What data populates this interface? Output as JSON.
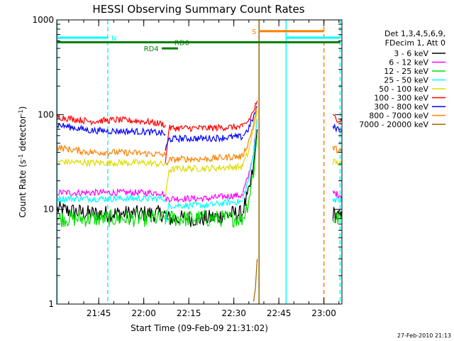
{
  "chart_data": {
    "type": "line",
    "title": "HESSI Observing Summary Count Rates",
    "xlabel": "Start Time (09-Feb-09 21:31:02)",
    "ylabel": "Count Rate (s⁻¹ detector⁻¹)",
    "ylabel_main": "Count Rate (s",
    "ylabel_sup1": "-1",
    "ylabel_mid": " detector",
    "ylabel_sup2": "-1",
    "ylabel_end": ")",
    "y_scale": "log",
    "ylim": [
      1,
      1000
    ],
    "xlim": [
      21.517,
      23.1
    ],
    "x_unit": "hours (UT)",
    "x_ticks": [
      {
        "value": 21.75,
        "label": "21:45"
      },
      {
        "value": 22.0,
        "label": "22:00"
      },
      {
        "value": 22.25,
        "label": "22:15"
      },
      {
        "value": 22.5,
        "label": "22:30"
      },
      {
        "value": 22.75,
        "label": "22:45"
      },
      {
        "value": 23.0,
        "label": "23:00"
      }
    ],
    "y_ticks": [
      {
        "value": 1,
        "label": "1"
      },
      {
        "value": 10,
        "label": "10"
      },
      {
        "value": 100,
        "label": "100"
      },
      {
        "value": 1000,
        "label": "1000"
      }
    ],
    "grid": false,
    "legend_position": "right",
    "legend_header": [
      "Det 1,3,4,5,6,9,",
      "FDecim 1, Att 0"
    ],
    "timestamp": "27-Feb-2010 21:13",
    "data_gap": [
      22.63,
      23.05
    ],
    "series": [
      {
        "name": "3 - 6 keV",
        "color": "#000000",
        "segments": [
          {
            "x": [
              21.52,
              21.7,
              21.85,
              22.0,
              22.1,
              22.12
            ],
            "y": [
              10,
              9,
              9,
              9,
              9,
              9
            ]
          },
          {
            "x": [
              22.12,
              22.2,
              22.35,
              22.5,
              22.55
            ],
            "y": [
              8,
              8,
              8,
              9,
              9
            ]
          },
          {
            "x": [
              22.55,
              22.58,
              22.61,
              22.63
            ],
            "y": [
              10,
              14,
              28,
              70
            ]
          },
          {
            "x": [
              23.05,
              23.1
            ],
            "y": [
              9,
              8
            ]
          }
        ]
      },
      {
        "name": "6 - 12 keV",
        "color": "#ff00ff",
        "segments": [
          {
            "x": [
              21.52,
              21.7,
              21.85,
              22.0,
              22.1,
              22.12
            ],
            "y": [
              15,
              15,
              15,
              15,
              15,
              14
            ]
          },
          {
            "x": [
              22.12,
              22.2,
              22.35,
              22.5,
              22.55
            ],
            "y": [
              13,
              13,
              13,
              14,
              14
            ]
          },
          {
            "x": [
              22.55,
              22.58,
              22.61,
              22.63
            ],
            "y": [
              15,
              22,
              40,
              90
            ]
          },
          {
            "x": [
              23.05,
              23.1
            ],
            "y": [
              15,
              14
            ]
          }
        ]
      },
      {
        "name": "12 - 25 keV",
        "color": "#00dd00",
        "segments": [
          {
            "x": [
              21.52,
              21.7,
              21.85,
              22.0,
              22.1,
              22.12
            ],
            "y": [
              8,
              8,
              8,
              8,
              8,
              8
            ]
          },
          {
            "x": [
              22.12,
              22.2,
              22.35,
              22.5,
              22.55
            ],
            "y": [
              8,
              8,
              8,
              8,
              8
            ]
          },
          {
            "x": [
              22.55,
              22.58,
              22.61,
              22.63
            ],
            "y": [
              8,
              12,
              25,
              60
            ]
          },
          {
            "x": [
              23.05,
              23.1
            ],
            "y": [
              8,
              8
            ]
          }
        ]
      },
      {
        "name": "25 - 50 keV",
        "color": "#00ffff",
        "segments": [
          {
            "x": [
              21.52,
              21.7,
              21.85,
              22.0,
              22.1,
              22.12
            ],
            "y": [
              13,
              13,
              13,
              13,
              13,
              13
            ]
          },
          {
            "x": [
              22.12,
              22.14,
              22.2,
              22.35,
              22.5,
              22.55
            ],
            "y": [
              7,
              11,
              11,
              11,
              12,
              12
            ]
          },
          {
            "x": [
              22.55,
              22.58,
              22.61,
              22.63
            ],
            "y": [
              13,
              20,
              40,
              90
            ]
          },
          {
            "x": [
              23.05,
              23.1
            ],
            "y": [
              13,
              12
            ]
          }
        ]
      },
      {
        "name": "50 - 100 keV",
        "color": "#dddd00",
        "segments": [
          {
            "x": [
              21.52,
              21.7,
              21.85,
              22.0,
              22.1,
              22.12
            ],
            "y": [
              32,
              31,
              31,
              31,
              30,
              30
            ]
          },
          {
            "x": [
              22.12,
              22.14,
              22.2,
              22.35,
              22.5,
              22.55
            ],
            "y": [
              13,
              26,
              27,
              27,
              28,
              28
            ]
          },
          {
            "x": [
              22.55,
              22.58,
              22.61,
              22.63
            ],
            "y": [
              30,
              40,
              70,
              110
            ]
          },
          {
            "x": [
              23.05,
              23.1
            ],
            "y": [
              32,
              30
            ]
          }
        ]
      },
      {
        "name": "100 - 300 keV",
        "color": "#ff0000",
        "segments": [
          {
            "x": [
              21.52,
              21.7,
              21.85,
              22.0,
              22.1,
              22.12
            ],
            "y": [
              95,
              85,
              88,
              85,
              80,
              78
            ]
          },
          {
            "x": [
              22.12,
              22.14,
              22.2,
              22.35,
              22.5,
              22.55
            ],
            "y": [
              30,
              72,
              72,
              72,
              74,
              74
            ]
          },
          {
            "x": [
              22.55,
              22.58,
              22.61,
              22.63
            ],
            "y": [
              76,
              85,
              110,
              140
            ]
          },
          {
            "x": [
              23.05,
              23.1
            ],
            "y": [
              95,
              85
            ]
          }
        ]
      },
      {
        "name": "300 - 800 keV",
        "color": "#0000ff",
        "segments": [
          {
            "x": [
              21.52,
              21.7,
              21.85,
              22.0,
              22.1,
              22.12
            ],
            "y": [
              78,
              68,
              67,
              66,
              64,
              62
            ]
          },
          {
            "x": [
              22.12,
              22.14,
              22.2,
              22.35,
              22.5,
              22.55
            ],
            "y": [
              42,
              55,
              56,
              56,
              58,
              58
            ]
          },
          {
            "x": [
              22.55,
              22.58,
              22.61,
              22.63
            ],
            "y": [
              60,
              70,
              95,
              120
            ]
          },
          {
            "x": [
              23.05,
              23.1
            ],
            "y": [
              75,
              68
            ]
          }
        ]
      },
      {
        "name": "800 - 7000 keV",
        "color": "#ff8000",
        "segments": [
          {
            "x": [
              21.52,
              21.7,
              21.85,
              22.0,
              22.1,
              22.12
            ],
            "y": [
              45,
              40,
              40,
              39,
              38,
              37
            ]
          },
          {
            "x": [
              22.12,
              22.14,
              22.2,
              22.35,
              22.5,
              22.55
            ],
            "y": [
              30,
              33,
              34,
              34,
              36,
              36
            ]
          },
          {
            "x": [
              22.55,
              22.58,
              22.61,
              22.63
            ],
            "y": [
              38,
              50,
              80,
              120
            ]
          },
          {
            "x": [
              23.05,
              23.1
            ],
            "y": [
              45,
              40
            ]
          }
        ]
      },
      {
        "name": "7000 - 20000 keV",
        "color": "#996600",
        "segments": [
          {
            "x": [
              22.61,
              22.62,
              22.63
            ],
            "y": [
              1,
              1.5,
              3
            ]
          }
        ]
      }
    ],
    "vlines": [
      {
        "x": 21.52,
        "color": "#00ffff",
        "style": "solid"
      },
      {
        "x": 21.8,
        "color": "#00ffff",
        "style": "dashed"
      },
      {
        "x": 22.64,
        "color": "#996600",
        "style": "solid"
      },
      {
        "x": 22.79,
        "color": "#00ffff",
        "style": "solid"
      },
      {
        "x": 23.0,
        "color": "#ff8000",
        "style": "dashed"
      },
      {
        "x": 23.09,
        "color": "#00ffff",
        "style": "dashed"
      }
    ],
    "bars": [
      {
        "label": "N",
        "x0": 21.52,
        "x1": 21.8,
        "y": 650,
        "color": "#00ffff",
        "label_x": 21.82,
        "thickness": 3
      },
      {
        "label": "",
        "x0": 22.79,
        "x1": 23.09,
        "y": 650,
        "color": "#00ffff",
        "thickness": 3
      },
      {
        "label": "RD0",
        "x0": 21.52,
        "x1": 23.09,
        "y": 580,
        "color": "#008000",
        "label_x": 22.17,
        "thickness": 3
      },
      {
        "label": "RD4",
        "x0": 22.1,
        "x1": 22.19,
        "y": 500,
        "color": "#008000",
        "label_x": 22.0,
        "thickness": 3
      },
      {
        "label": "S",
        "x0": 22.64,
        "x1": 23.0,
        "y": 760,
        "color": "#ff8000",
        "label_x": 22.6,
        "thickness": 3
      }
    ]
  }
}
